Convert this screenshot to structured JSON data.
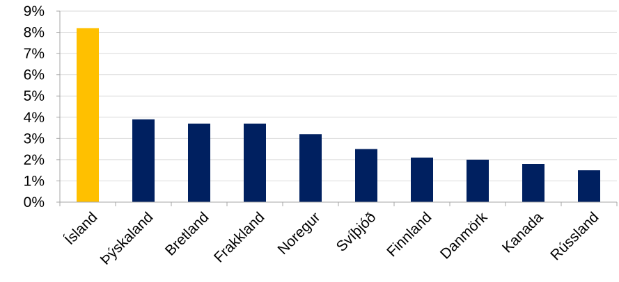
{
  "chart_data": {
    "type": "bar",
    "title": "",
    "xlabel": "",
    "ylabel": "",
    "categories": [
      "Ísland",
      "Þýskaland",
      "Bretland",
      "Frakkland",
      "Noregur",
      "Svíþjóð",
      "Finnland",
      "Danmörk",
      "Kanada",
      "Rússland"
    ],
    "values": [
      8.2,
      3.9,
      3.7,
      3.7,
      3.2,
      2.5,
      2.1,
      2.0,
      1.8,
      1.5
    ],
    "y_tick_labels": [
      "0%",
      "1%",
      "2%",
      "3%",
      "4%",
      "5%",
      "6%",
      "7%",
      "8%",
      "9%"
    ],
    "ylim": [
      0,
      9
    ],
    "y_tick_step": 1,
    "grid": true,
    "legend": "none",
    "colors": {
      "highlight": "#FFC000",
      "bar": "#002060",
      "grid": "#D9D9D9",
      "axis": "#A6A6A6"
    },
    "highlight_index": 0
  }
}
